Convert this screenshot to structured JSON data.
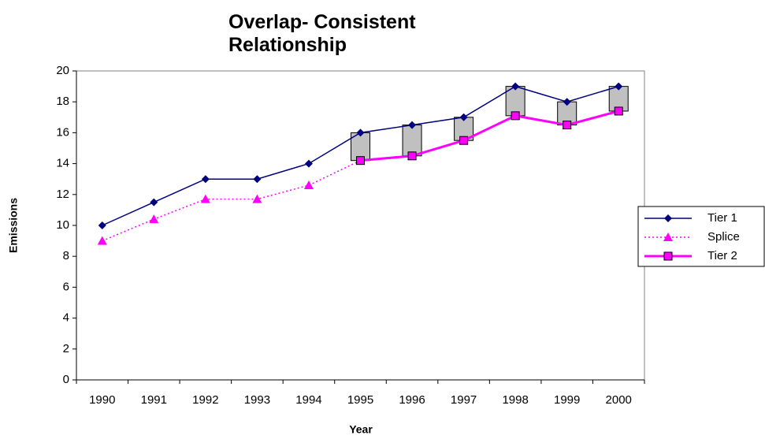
{
  "chart_data": {
    "type": "line",
    "title": "Overlap- Consistent Relationship",
    "x_label": "Year",
    "y_label": "Emissions",
    "categories": [
      "1990",
      "1991",
      "1992",
      "1993",
      "1994",
      "1995",
      "1996",
      "1997",
      "1998",
      "1999",
      "2000"
    ],
    "series": [
      {
        "name": "Tier 1",
        "color": "#000080",
        "marker": "diamond",
        "dash": "solid",
        "values": [
          10,
          11.5,
          13,
          13,
          14,
          16,
          16.5,
          17,
          19,
          18,
          19
        ]
      },
      {
        "name": "Splice",
        "color": "#ff00ff",
        "marker": "triangle",
        "dash": "dotted",
        "values": [
          9,
          10.4,
          11.7,
          11.7,
          12.6,
          14.2,
          14.5,
          15.5,
          17.1,
          16.5,
          17.4
        ]
      },
      {
        "name": "Tier 2",
        "color": "#ff00ff",
        "marker": "square",
        "dash": "solid",
        "values": [
          null,
          null,
          null,
          null,
          null,
          14.2,
          14.5,
          15.5,
          17.1,
          16.5,
          17.4
        ]
      }
    ],
    "overlap_box_color": "#c0c0c0",
    "ylim": [
      0,
      20
    ],
    "yticks": [
      0,
      2,
      4,
      6,
      8,
      10,
      12,
      14,
      16,
      18,
      20
    ],
    "legend": "right"
  }
}
